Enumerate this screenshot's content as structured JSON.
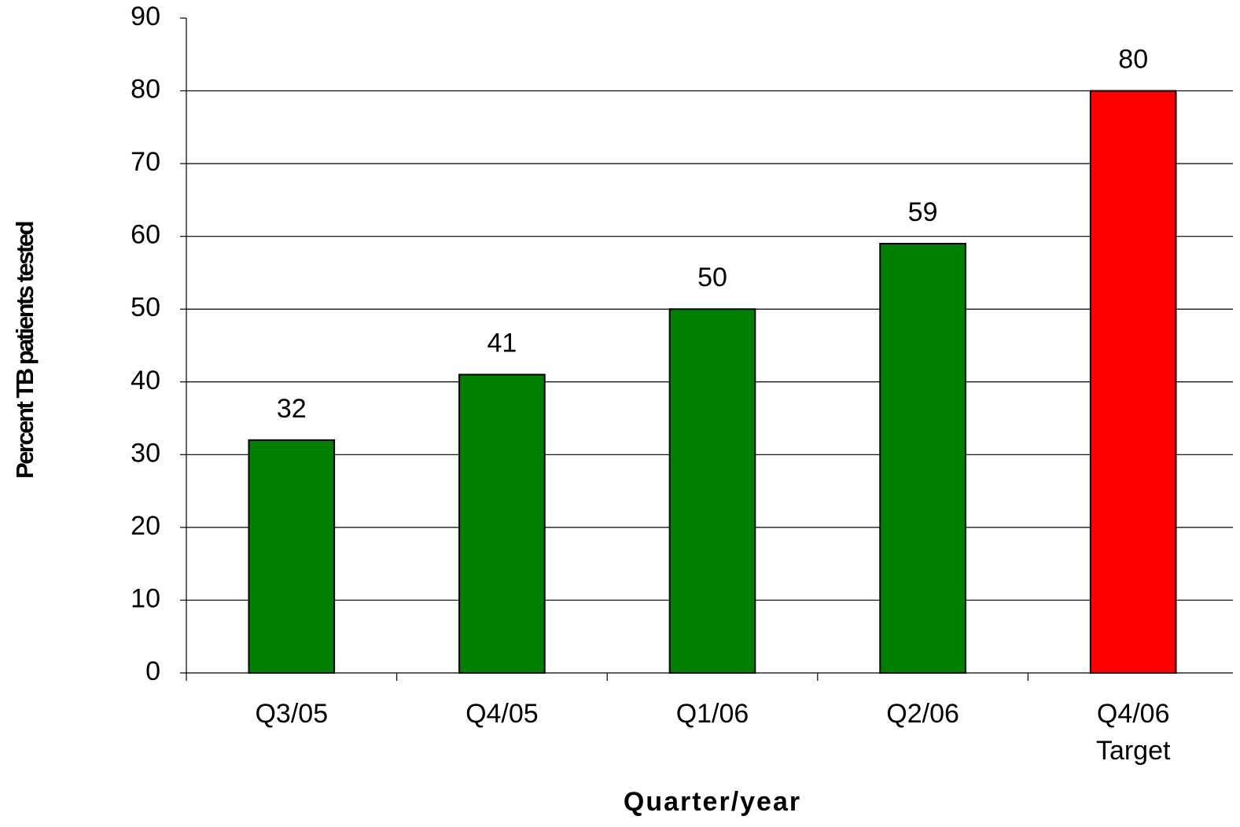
{
  "chart_data": {
    "type": "bar",
    "x_label": "Quarter/year",
    "y_label": "Percent TB patients tested",
    "categories": [
      [
        "Q3/05"
      ],
      [
        "Q4/05"
      ],
      [
        "Q1/06"
      ],
      [
        "Q2/06"
      ],
      [
        "Q4/06",
        "Target"
      ]
    ],
    "values": [
      32,
      41,
      50,
      59,
      80
    ],
    "colors": [
      "#008000",
      "#008000",
      "#008000",
      "#008000",
      "#ff0000"
    ],
    "ylim": [
      0,
      90
    ],
    "yticks": [
      0,
      10,
      20,
      30,
      40,
      50,
      60,
      70,
      80,
      90
    ],
    "grid": true
  }
}
